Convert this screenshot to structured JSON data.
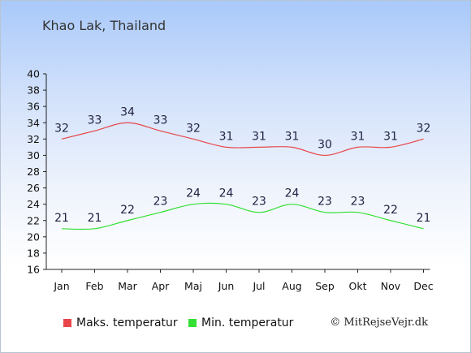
{
  "title": "Khao Lak, Thailand",
  "credit": "© MitRejseVejr.dk",
  "chart_data": {
    "type": "line",
    "categories": [
      "Jan",
      "Feb",
      "Mar",
      "Apr",
      "Maj",
      "Jun",
      "Jul",
      "Aug",
      "Sep",
      "Okt",
      "Nov",
      "Dec"
    ],
    "ylim": [
      16,
      40
    ],
    "yticks": [
      16,
      18,
      20,
      22,
      24,
      26,
      28,
      30,
      32,
      34,
      36,
      38,
      40
    ],
    "grid": false,
    "legend_position": "bottom",
    "series": [
      {
        "name": "Maks. temperatur",
        "color": "#e8464a",
        "values": [
          32,
          33,
          34,
          33,
          32,
          31,
          31,
          31,
          30,
          31,
          31,
          32
        ]
      },
      {
        "name": "Min. temperatur",
        "color": "#33e033",
        "values": [
          21,
          21,
          22,
          23,
          24,
          24,
          23,
          24,
          23,
          23,
          22,
          21
        ]
      }
    ]
  }
}
